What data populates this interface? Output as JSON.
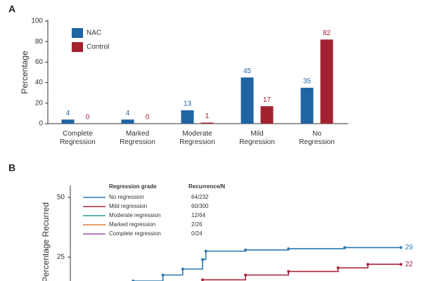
{
  "chart_data": [
    {
      "type": "bar",
      "panel": "A",
      "y_label": "Percentage",
      "categories": [
        "Complete Regression",
        "Marked Regression",
        "Moderate Regression",
        "Mild Regression",
        "No Regression"
      ],
      "series": [
        {
          "name": "NAC",
          "color": "#1f64a3",
          "values": [
            4,
            4,
            13,
            45,
            35
          ]
        },
        {
          "name": "Control",
          "color": "#a3222f",
          "values": [
            0,
            0,
            1,
            17,
            82
          ]
        }
      ],
      "ylim": [
        0,
        100
      ],
      "yticks": [
        0,
        20,
        40,
        60,
        80,
        100
      ],
      "legend": "upper-left"
    },
    {
      "type": "line",
      "panel": "B",
      "y_label": "Percentage Recurred",
      "xlim": [
        0,
        100
      ],
      "ylim": [
        15,
        55
      ],
      "yticks": [
        25,
        50
      ],
      "legend_headers": [
        "Regression grade",
        "Recurrence/N"
      ],
      "series": [
        {
          "name": "No regression",
          "color": "#2a78b0",
          "recurrence": "64/232",
          "end_label": "29",
          "x": [
            19,
            28,
            34,
            40,
            41,
            53,
            66,
            83,
            100
          ],
          "values": [
            15,
            17.5,
            20,
            24,
            27.5,
            28,
            28.5,
            29,
            29
          ]
        },
        {
          "name": "Mild regression",
          "color": "#a8243a",
          "recurrence": "60/300",
          "end_label": "22",
          "x": [
            40,
            53,
            66,
            81,
            90,
            100
          ],
          "values": [
            15.5,
            17.5,
            19,
            20.5,
            22,
            22
          ]
        },
        {
          "name": "Moderate regression",
          "color": "#2a9d8f",
          "recurrence": "12/64",
          "x": [],
          "values": []
        },
        {
          "name": "Marked regression",
          "color": "#e07b39",
          "recurrence": "2/26",
          "x": [],
          "values": []
        },
        {
          "name": "Complete regression",
          "color": "#9b4fb0",
          "recurrence": "0/24",
          "x": [],
          "values": []
        }
      ]
    }
  ]
}
